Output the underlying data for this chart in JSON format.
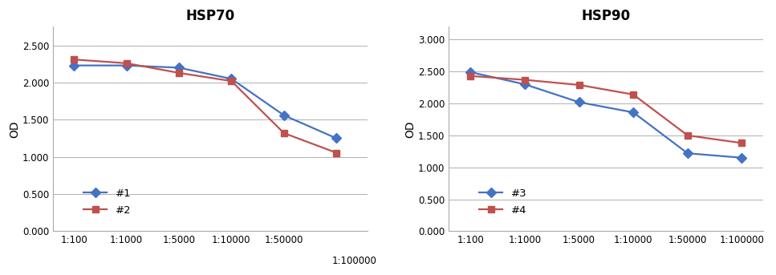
{
  "hsp70": {
    "title": "HSP70",
    "ylabel": "OD",
    "x_labels": [
      "1:100",
      "1:1000",
      "1:5000",
      "1:10000",
      "1:50000",
      "1:100000"
    ],
    "series": [
      {
        "label": "#1",
        "color": "#4472C4",
        "marker": "D",
        "values": [
          2.23,
          2.23,
          2.2,
          2.05,
          1.56,
          1.25
        ]
      },
      {
        "label": "#2",
        "color": "#C0504D",
        "marker": "s",
        "values": [
          2.31,
          2.26,
          2.13,
          2.02,
          1.32,
          1.055
        ]
      }
    ],
    "ylim": [
      0.0,
      2.75
    ],
    "yticks": [
      0.0,
      0.5,
      1.0,
      1.5,
      2.0,
      2.5
    ],
    "last_xlabel_offset": true
  },
  "hsp90": {
    "title": "HSP90",
    "ylabel": "OD",
    "x_labels": [
      "1:100",
      "1:1000",
      "1:5000",
      "1:10000",
      "1:50000",
      "1:100000"
    ],
    "series": [
      {
        "label": "#3",
        "color": "#4472C4",
        "marker": "D",
        "values": [
          2.49,
          2.3,
          2.02,
          1.86,
          1.22,
          1.15
        ]
      },
      {
        "label": "#4",
        "color": "#C0504D",
        "marker": "s",
        "values": [
          2.43,
          2.37,
          2.29,
          2.14,
          1.5,
          1.38
        ]
      }
    ],
    "ylim": [
      0.0,
      3.2
    ],
    "yticks": [
      0.0,
      0.5,
      1.0,
      1.5,
      2.0,
      2.5,
      3.0
    ],
    "last_xlabel_offset": false
  },
  "background_color": "#ffffff",
  "grid_color": "#b0b0b0",
  "title_fontsize": 12,
  "axis_label_fontsize": 10,
  "tick_fontsize": 8.5,
  "legend_fontsize": 9.5,
  "linewidth": 1.6,
  "markersize": 6
}
